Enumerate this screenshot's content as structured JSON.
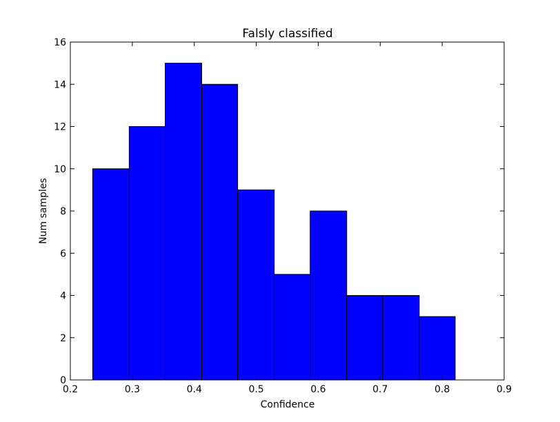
{
  "chart_data": {
    "type": "bar",
    "title": "Falsly classified",
    "xlabel": "Confidence",
    "ylabel": "Num samples",
    "xlim": [
      0.2,
      0.9
    ],
    "ylim": [
      0,
      16
    ],
    "xticks": [
      "0.2",
      "0.3",
      "0.4",
      "0.5",
      "0.6",
      "0.7",
      "0.8",
      "0.9"
    ],
    "yticks": [
      "0",
      "2",
      "4",
      "6",
      "8",
      "10",
      "12",
      "14",
      "16"
    ],
    "bin_edges": [
      0.236,
      0.295,
      0.353,
      0.412,
      0.47,
      0.529,
      0.587,
      0.646,
      0.704,
      0.763,
      0.821
    ],
    "values": [
      10,
      12,
      15,
      14,
      9,
      5,
      8,
      4,
      4,
      3
    ],
    "grid": false,
    "bar_color": "#0000ff",
    "edge_color": "#000000"
  }
}
